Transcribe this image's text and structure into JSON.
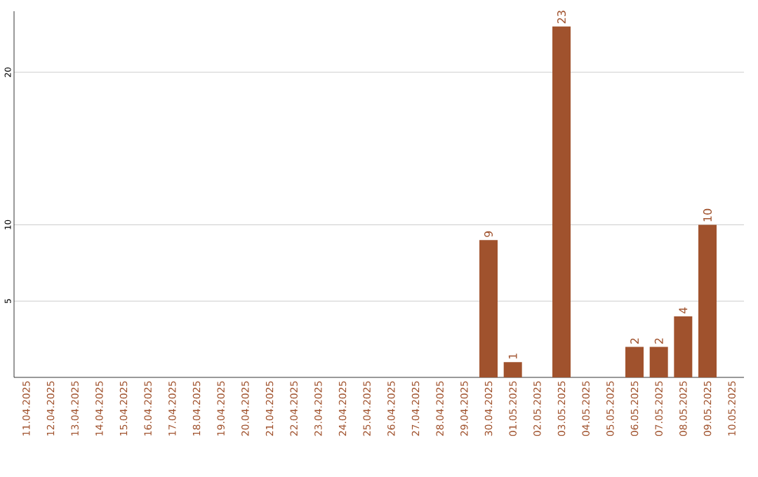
{
  "chart_data": {
    "type": "bar",
    "categories": [
      "11.04.2025",
      "12.04.2025",
      "13.04.2025",
      "14.04.2025",
      "15.04.2025",
      "16.04.2025",
      "17.04.2025",
      "18.04.2025",
      "19.04.2025",
      "20.04.2025",
      "21.04.2025",
      "22.04.2025",
      "23.04.2025",
      "24.04.2025",
      "25.04.2025",
      "26.04.2025",
      "27.04.2025",
      "28.04.2025",
      "29.04.2025",
      "30.04.2025",
      "01.05.2025",
      "02.05.2025",
      "03.05.2025",
      "04.05.2025",
      "05.05.2025",
      "06.05.2025",
      "07.05.2025",
      "08.05.2025",
      "09.05.2025",
      "10.05.2025"
    ],
    "values": [
      null,
      null,
      null,
      null,
      null,
      null,
      null,
      null,
      null,
      null,
      null,
      null,
      null,
      null,
      null,
      null,
      null,
      null,
      null,
      9,
      1,
      null,
      23,
      null,
      null,
      2,
      2,
      4,
      10,
      null
    ],
    "color": "#a0522d",
    "ylim": [
      0,
      24
    ],
    "yticks": [
      5,
      10,
      20
    ],
    "grid": "y",
    "data_labels": true
  }
}
